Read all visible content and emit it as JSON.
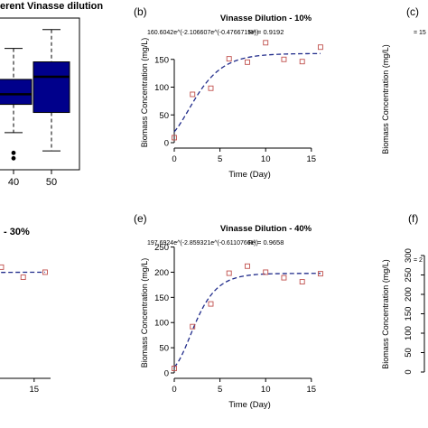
{
  "panels": {
    "a": {
      "title": "erent Vinasse dilution"
    },
    "b": {
      "label": "(b)"
    },
    "c": {
      "label": "(c)"
    },
    "d": {
      "title": "- 30%"
    },
    "e": {
      "label": "(e)"
    },
    "f": {
      "label": "(f)"
    }
  },
  "chart_data": [
    {
      "id": "a",
      "type": "box",
      "title": "erent Vinasse dilution",
      "categories": [
        "40",
        "50"
      ],
      "boxes": [
        {
          "category": "40",
          "q1": 97,
          "median": 112,
          "q3": 134,
          "whisker_low": 55,
          "whisker_high": 180,
          "outliers": [
            17,
            25
          ]
        },
        {
          "category": "50",
          "q1": 85,
          "median": 138,
          "q3": 160,
          "whisker_low": 28,
          "whisker_high": 208,
          "outliers": []
        }
      ],
      "box_color": "#00008b"
    },
    {
      "id": "b",
      "type": "scatter",
      "label": "(b)",
      "title": "Vinasse Dilution - 10%",
      "equation": "160.6042e^(-2.106607e^(-0.4766715x))",
      "r2_text": "R² = 0.9192",
      "xlabel": "Time (Day)",
      "ylabel": "Biomass Concentration (mg/L)",
      "xlim": [
        0,
        16.5
      ],
      "ylim": [
        0,
        200
      ],
      "xticks": [
        0,
        5,
        10,
        15
      ],
      "yticks": [
        0,
        50,
        100,
        150
      ],
      "points": {
        "x": [
          0,
          2,
          4,
          6,
          8,
          10,
          12,
          14,
          16
        ],
        "y": [
          9,
          87,
          98,
          151,
          145,
          180,
          150,
          146,
          172
        ]
      },
      "fit": {
        "a": 160.6042,
        "b": 2.106607,
        "c": 0.4766715,
        "x_range": [
          0,
          16
        ]
      },
      "marker_color": "#c0504d",
      "fit_color": "#1f2a8a"
    },
    {
      "id": "c",
      "type": "scatter",
      "label": "(c)",
      "ylabel": "Biomass Concentration (mg/L)",
      "equation_visible": "= 15"
    },
    {
      "id": "d",
      "type": "scatter",
      "title": "- 30%",
      "xticks": [
        15
      ],
      "points": {
        "x": [
          12,
          14,
          16
        ],
        "y": [
          210,
          190,
          200
        ]
      },
      "marker_color": "#c0504d",
      "fit_color": "#1f2a8a"
    },
    {
      "id": "e",
      "type": "scatter",
      "label": "(e)",
      "title": "Vinasse Dilution - 40%",
      "equation": "197.6924e^(-2.859321e^(-0.6110766x))",
      "r2_text": "R² = 0.9658",
      "xlabel": "Time (Day)",
      "ylabel": "Biomass Concentration (mg/L)",
      "xlim": [
        0,
        16.5
      ],
      "ylim": [
        0,
        260
      ],
      "xticks": [
        0,
        5,
        10,
        15
      ],
      "yticks": [
        0,
        50,
        100,
        150,
        200,
        250
      ],
      "points": {
        "x": [
          0,
          2,
          4,
          6,
          8,
          10,
          12,
          14,
          16
        ],
        "y": [
          9,
          92,
          137,
          198,
          212,
          200,
          189,
          181,
          197
        ]
      },
      "fit": {
        "a": 197.6924,
        "b": 2.859321,
        "c": 0.6110766,
        "x_range": [
          0,
          16
        ]
      },
      "marker_color": "#c0504d",
      "fit_color": "#1f2a8a"
    },
    {
      "id": "f",
      "type": "scatter",
      "label": "(f)",
      "ylabel": "Biomass Concentration (mg/L)",
      "yticks": [
        0,
        50,
        100,
        150,
        200,
        250,
        300
      ],
      "equation_visible": "= 2"
    }
  ]
}
